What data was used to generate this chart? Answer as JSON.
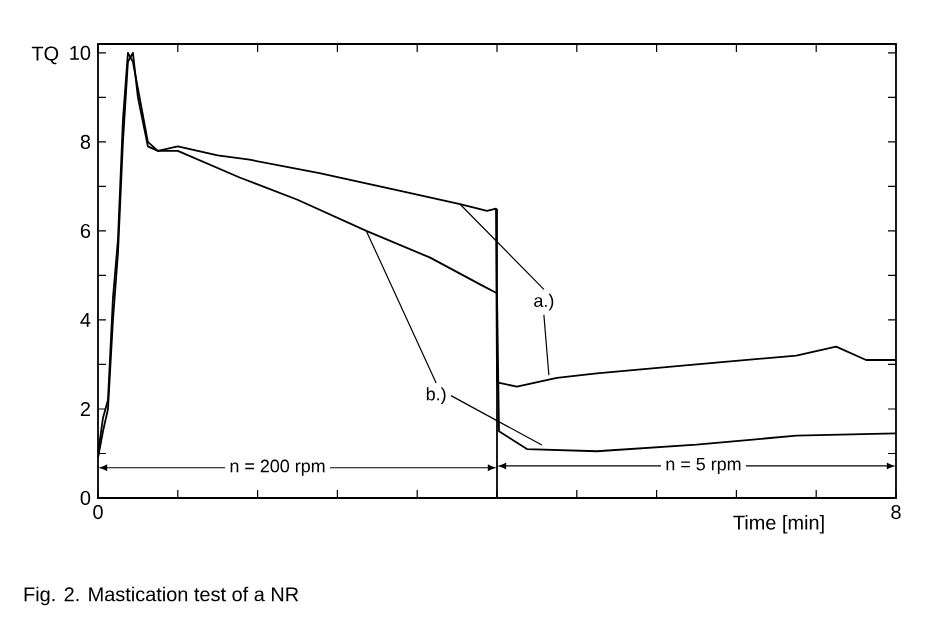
{
  "chart_data": {
    "type": "line",
    "xlabel": "Time [min]",
    "ylabel": "TQ",
    "xlim": [
      0,
      8
    ],
    "ylim": [
      0,
      10.2
    ],
    "xticks": [
      0,
      {
        "value": 0.8,
        "label": null
      },
      {
        "value": 1.6,
        "label": null
      },
      {
        "value": 2.4,
        "label": null
      },
      {
        "value": 3.2,
        "label": null
      },
      {
        "value": 4.0,
        "label": null
      },
      {
        "value": 4.8,
        "label": null
      },
      {
        "value": 5.6,
        "label": null
      },
      {
        "value": 6.4,
        "label": null
      },
      {
        "value": 7.2,
        "label": null
      },
      8
    ],
    "yticks": [
      0,
      {
        "value": 1,
        "label": null
      },
      2,
      {
        "value": 3,
        "label": null
      },
      4,
      {
        "value": 5,
        "label": null
      },
      6,
      {
        "value": 7,
        "label": null
      },
      8,
      {
        "value": 9,
        "label": null
      },
      10
    ],
    "grid": false,
    "legend": false,
    "marker": "none",
    "line_style": "solid",
    "series": [
      {
        "color": "#000000",
        "x": [
          0,
          0.05,
          0.1,
          0.15,
          0.2,
          0.25,
          0.3,
          0.35,
          0.4,
          0.5,
          0.6,
          0.8,
          1.2,
          1.52,
          2.22,
          3.03,
          3.63,
          3.9,
          3.99,
          4.0,
          4.2,
          4.6,
          5.0,
          5.5,
          6.0,
          6.5,
          7.0,
          7.4,
          7.7,
          8.0
        ],
        "values": [
          1.0,
          1.8,
          2.2,
          4.5,
          5.8,
          8.5,
          10.0,
          9.8,
          9.2,
          8.0,
          7.8,
          7.9,
          7.7,
          7.6,
          7.3,
          6.9,
          6.6,
          6.45,
          6.5,
          2.6,
          2.5,
          2.7,
          2.8,
          2.9,
          3.0,
          3.1,
          3.2,
          3.4,
          3.1,
          3.1
        ]
      },
      {
        "color": "#000000",
        "x": [
          0,
          0.05,
          0.1,
          0.15,
          0.2,
          0.25,
          0.3,
          0.35,
          0.4,
          0.5,
          0.6,
          0.8,
          1.42,
          2.0,
          2.69,
          3.33,
          3.83,
          4.0,
          4.02,
          4.3,
          5.0,
          6.0,
          7.0,
          8.0
        ],
        "values": [
          0.9,
          1.5,
          2.0,
          4.0,
          5.5,
          8.0,
          9.8,
          10.0,
          9.0,
          7.9,
          7.8,
          7.8,
          7.2,
          6.7,
          6.0,
          5.4,
          4.8,
          4.6,
          1.5,
          1.1,
          1.05,
          1.2,
          1.4,
          1.45
        ]
      }
    ],
    "ref_lines": [
      {
        "axis": "x",
        "value": 4.0,
        "label": null
      }
    ],
    "annotations": [
      {
        "text": "a.)",
        "x": 3.63,
        "y": 6.6
      },
      {
        "text": "b.)",
        "x": 2.69,
        "y": 6.0
      },
      {
        "text": "n = 200 rpm",
        "x": 4.0,
        "y": 0.68
      },
      {
        "text": "n = 5 rpm",
        "x": 4.0,
        "y": 0.72
      },
      "Fig. 2.      Mastication test of a NR"
    ]
  }
}
